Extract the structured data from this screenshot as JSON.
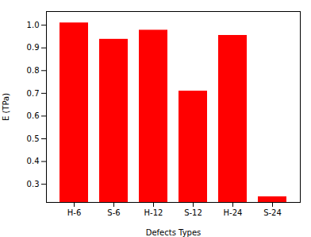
{
  "chart_data": {
    "type": "bar",
    "categories": [
      "H-6",
      "S-6",
      "H-12",
      "S-12",
      "H-24",
      "S-24"
    ],
    "values": [
      1.01,
      0.938,
      0.978,
      0.71,
      0.955,
      0.245
    ],
    "color": "#FF0000",
    "xlabel": "Defects Types",
    "ylabel": "E (TPa)",
    "ylim": [
      0.22,
      1.06
    ],
    "yticks": [
      0.3,
      0.4,
      0.5,
      0.6,
      0.7,
      0.8,
      0.9,
      {
        "value": 1,
        "label": "1.0"
      }
    ],
    "grid": false
  }
}
